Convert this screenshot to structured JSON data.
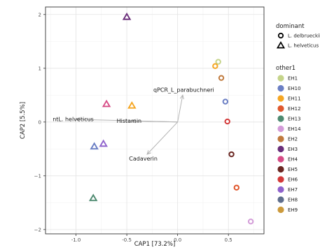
{
  "chart_data": {
    "type": "scatter",
    "xlabel": "CAP1   [73.2%]",
    "ylabel": "CAP2   [5.5%]",
    "xlim": [
      -1.3,
      0.85
    ],
    "ylim": [
      -2.08,
      2.14
    ],
    "xticks": [
      -1.0,
      -0.5,
      0.0,
      0.5
    ],
    "xtick_labels": [
      "-1.0",
      "-0.5",
      "0.0",
      "0.5"
    ],
    "yticks": [
      -2,
      -1,
      0,
      1,
      2
    ],
    "ytick_labels": [
      "−2",
      "−1",
      "0",
      "1",
      "2"
    ],
    "grid": true,
    "legend_position": "right",
    "arrow_origin": [
      0.0,
      0.0
    ],
    "arrows": [
      {
        "label": "qPCR_L_parabuchneri",
        "x": 0.05,
        "y": 0.5
      },
      {
        "label": "ntL. helveticus",
        "x": -1.0,
        "y": 0.05
      },
      {
        "label": "Histamin",
        "x": -0.45,
        "y": 0.02
      },
      {
        "label": "Cadaverin",
        "x": -0.3,
        "y": -0.6
      }
    ],
    "legend_shape": {
      "title": "dominant",
      "items": [
        {
          "label": "L. delbrueckii",
          "shape": "circle"
        },
        {
          "label": "L. helveticus",
          "shape": "triangle"
        }
      ]
    },
    "legend_color": {
      "title": "other1",
      "items": [
        {
          "label": "EH1",
          "color": "#c5d48a"
        },
        {
          "label": "EH10",
          "color": "#6b7fc4"
        },
        {
          "label": "EH11",
          "color": "#f5a623"
        },
        {
          "label": "EH12",
          "color": "#e0582e"
        },
        {
          "label": "EH13",
          "color": "#4e8a70"
        },
        {
          "label": "EH14",
          "color": "#d39bd8"
        },
        {
          "label": "EH2",
          "color": "#c07a3d"
        },
        {
          "label": "EH3",
          "color": "#6a2e7a"
        },
        {
          "label": "EH4",
          "color": "#d64b85"
        },
        {
          "label": "EH5",
          "color": "#6b2722"
        },
        {
          "label": "EH6",
          "color": "#d33a3a"
        },
        {
          "label": "EH7",
          "color": "#8f62cc"
        },
        {
          "label": "EH8",
          "color": "#5f6e8c"
        },
        {
          "label": "EH9",
          "color": "#cc9a3c"
        }
      ]
    },
    "points": [
      {
        "x": -0.5,
        "y": 1.95,
        "shape": "triangle",
        "group": "EH3"
      },
      {
        "x": 0.4,
        "y": 1.12,
        "shape": "circle",
        "group": "EH1"
      },
      {
        "x": 0.37,
        "y": 1.04,
        "shape": "circle",
        "group": "EH11"
      },
      {
        "x": 0.43,
        "y": 0.82,
        "shape": "circle",
        "group": "EH2"
      },
      {
        "x": 0.47,
        "y": 0.38,
        "shape": "circle",
        "group": "EH10"
      },
      {
        "x": 0.49,
        "y": 0.01,
        "shape": "circle",
        "group": "EH6"
      },
      {
        "x": 0.53,
        "y": -0.6,
        "shape": "circle",
        "group": "EH5"
      },
      {
        "x": 0.58,
        "y": -1.22,
        "shape": "circle",
        "group": "EH12"
      },
      {
        "x": 0.72,
        "y": -1.85,
        "shape": "circle",
        "group": "EH14"
      },
      {
        "x": -0.7,
        "y": 0.33,
        "shape": "triangle",
        "group": "EH4"
      },
      {
        "x": -0.45,
        "y": 0.3,
        "shape": "triangle",
        "group": "EH11"
      },
      {
        "x": -0.82,
        "y": -0.46,
        "shape": "triangle",
        "group": "EH10"
      },
      {
        "x": -0.73,
        "y": -0.41,
        "shape": "triangle",
        "group": "EH7"
      },
      {
        "x": -0.83,
        "y": -1.42,
        "shape": "triangle",
        "group": "EH13"
      }
    ]
  }
}
